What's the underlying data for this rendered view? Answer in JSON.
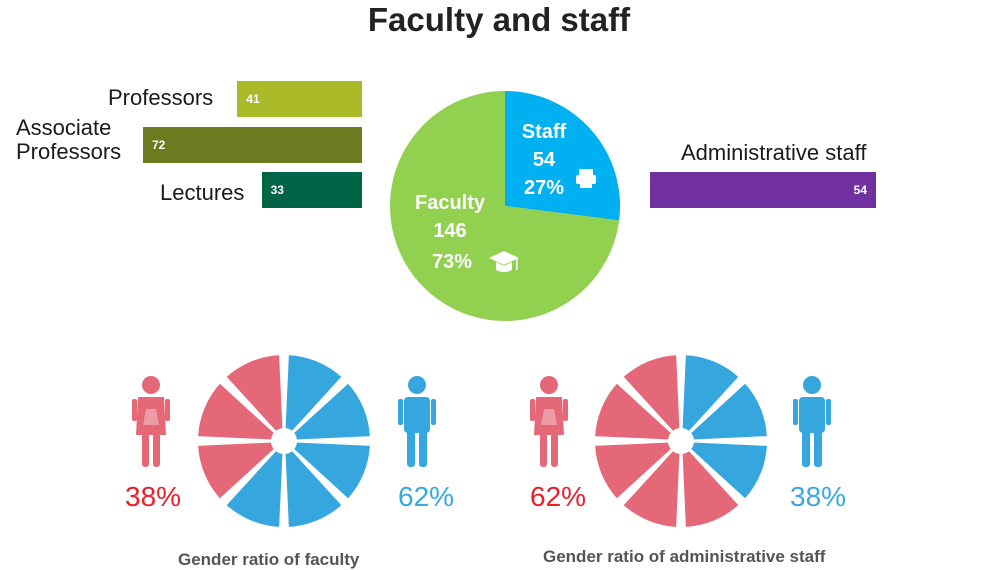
{
  "title": "Faculty and staff",
  "chart_data": [
    {
      "type": "bar",
      "orientation": "horizontal",
      "categories": [
        "Professors",
        "Associate Professors",
        "Lectures"
      ],
      "values": [
        41,
        72,
        33
      ],
      "colors": [
        "#a9b927",
        "#6d7a1f",
        "#006446"
      ]
    },
    {
      "type": "pie",
      "slices": [
        {
          "label": "Staff",
          "value": 54,
          "percent": "27%",
          "icon": "printer-icon",
          "color": "#00b0f0"
        },
        {
          "label": "Faculty",
          "value": 146,
          "percent": "73%",
          "icon": "graduation-cap-icon",
          "color": "#92d050"
        }
      ]
    },
    {
      "type": "bar",
      "orientation": "horizontal",
      "categories": [
        "Administrative staff"
      ],
      "values": [
        54
      ],
      "colors": [
        "#7030a0"
      ]
    },
    {
      "type": "pie",
      "title": "Gender ratio of faculty",
      "slices": [
        {
          "label": "female",
          "value": 38,
          "percent": "38%",
          "color": "#e46877"
        },
        {
          "label": "male",
          "value": 62,
          "percent": "62%",
          "color": "#36a6de"
        }
      ]
    },
    {
      "type": "pie",
      "title": "Gender ratio of administrative staff",
      "slices": [
        {
          "label": "female",
          "value": 62,
          "percent": "62%",
          "color": "#e46877"
        },
        {
          "label": "male",
          "value": 38,
          "percent": "38%",
          "color": "#36a6de"
        }
      ]
    }
  ],
  "colors": {
    "female": "#e46877",
    "male": "#36a6de",
    "female_text": "#e8202a",
    "male_text": "#3aa8e0"
  }
}
